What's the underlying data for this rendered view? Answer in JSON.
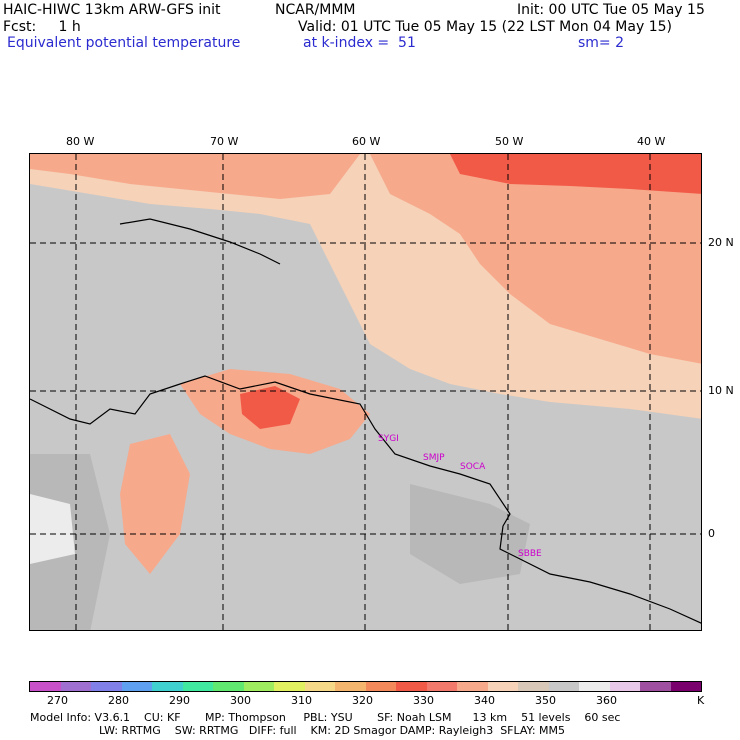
{
  "header": {
    "model": "HAIC-HIWC 13km ARW-GFS init",
    "org": "NCAR/MMM",
    "init": "Init: 00 UTC Tue 05 May 15",
    "fcst": "Fcst:     1 h",
    "valid": "Valid: 01 UTC Tue 05 May 15 (22 LST Mon 04 May 15)",
    "field": "Equivalent potential temperature",
    "level": "at k-index =  51",
    "smooth": "sm= 2"
  },
  "map": {
    "lon_labels": [
      "80 W",
      "70 W",
      "60 W",
      "50 W",
      "40 W"
    ],
    "lat_labels": [
      "20 N",
      "10 N",
      "0"
    ],
    "stations": [
      "SYGI",
      "SMJP",
      "SOCA",
      "SBBE"
    ],
    "colors": {
      "sea_peach": "#f5d2b8",
      "salmon": "#f7a98c",
      "red": "#f25a48",
      "gray": "#c8c8c8",
      "dark_gray": "#b8b8b8",
      "white": "#ececec"
    }
  },
  "colorbar": {
    "colors": [
      "#c850c8",
      "#a070d0",
      "#8080e8",
      "#60a0f0",
      "#40d0d0",
      "#40e8a0",
      "#60e870",
      "#a0ec60",
      "#e0f060",
      "#f5d888",
      "#f4b66e",
      "#f28a5c",
      "#f25a48",
      "#f27a6c",
      "#f7a98c",
      "#f5d2b8",
      "#d8c8b8",
      "#c8c8c8",
      "#ececec",
      "#e8c8e8",
      "#a050a0",
      "#7a006e"
    ],
    "ticks": [
      "270",
      "280",
      "290",
      "300",
      "310",
      "320",
      "330",
      "340",
      "350",
      "360",
      "K"
    ]
  },
  "footer": {
    "line1": "Model Info: V3.6.1    CU: KF       MP: Thompson     PBL: YSU       SF: Noah LSM      13 km    51 levels    60 sec",
    "line2": "LW: RRTMG    SW: RRTMG   DIFF: full    KM: 2D Smagor DAMP: Rayleigh3  SFLAY: MM5"
  }
}
